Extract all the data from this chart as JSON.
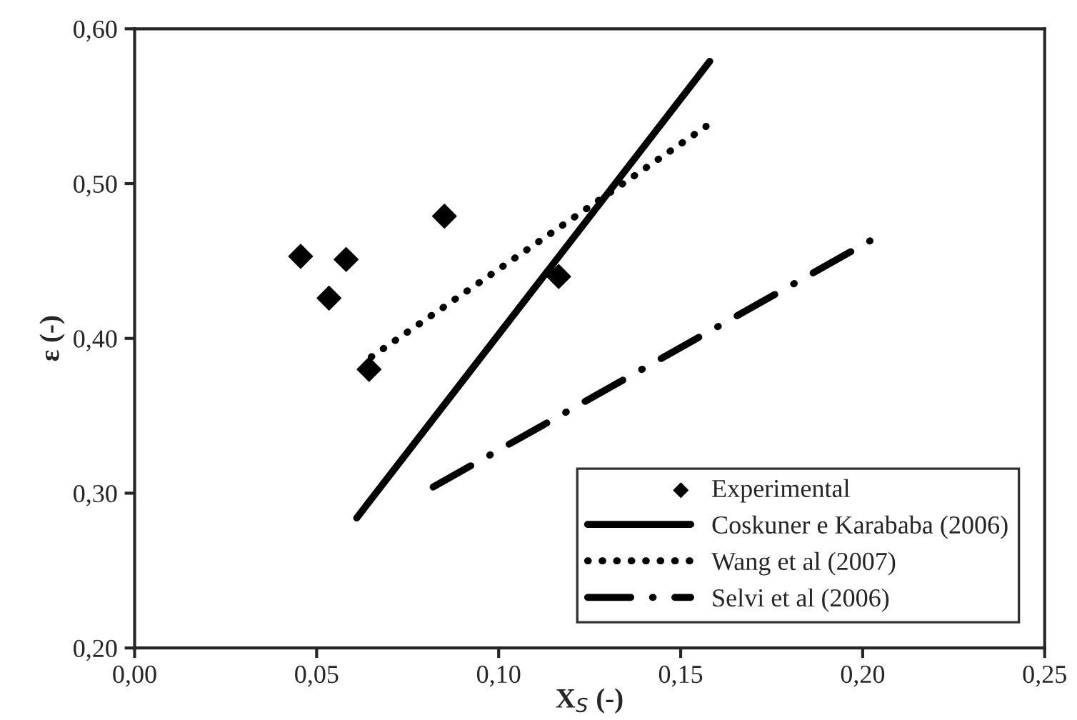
{
  "chart_data": {
    "type": "scatter",
    "xlabel": "X$_{S}$ (-)",
    "ylabel": "ε (-)",
    "xlim": [
      0,
      0.25
    ],
    "ylim": [
      0.2,
      0.6
    ],
    "xticks": [
      {
        "value": 0,
        "label": "0,00"
      },
      {
        "value": 0.05,
        "label": "0,05"
      },
      {
        "value": 0.1,
        "label": "0,10"
      },
      {
        "value": 0.15,
        "label": "0,15"
      },
      {
        "value": 0.2,
        "label": "0,20"
      },
      {
        "value": 0.25,
        "label": "0,25"
      }
    ],
    "yticks": [
      {
        "value": 0.2,
        "label": "0,20"
      },
      {
        "value": 0.3,
        "label": "0,30"
      },
      {
        "value": 0.4,
        "label": "0,40"
      },
      {
        "value": 0.5,
        "label": "0,50"
      },
      {
        "value": 0.6,
        "label": "0,60"
      }
    ],
    "grid": false,
    "legend": "bottom right",
    "series": [
      {
        "name": "Experimental",
        "marker": "diamond",
        "color": "#000000",
        "x": [
          0.0456,
          0.0534,
          0.0581,
          0.0851,
          0.0644,
          0.1165
        ],
        "values": [
          0.453,
          0.426,
          0.451,
          0.479,
          0.38,
          0.44
        ]
      },
      {
        "name": "Coskuner e Karababa (2006)",
        "type": "line",
        "line_style": "solid",
        "color": "#000000",
        "x": [
          0.061,
          0.158
        ],
        "values": [
          0.284,
          0.579
        ]
      },
      {
        "name": "Wang et al (2007)",
        "type": "line",
        "line_style": "dotted",
        "color": "#000000",
        "x": [
          0.065,
          0.157
        ],
        "values": [
          0.388,
          0.537
        ]
      },
      {
        "name": "Selvi et al (2006)",
        "type": "line",
        "line_style": "dashdot",
        "color": "#000000",
        "x": [
          0.082,
          0.202
        ],
        "values": [
          0.304,
          0.463
        ]
      }
    ]
  }
}
